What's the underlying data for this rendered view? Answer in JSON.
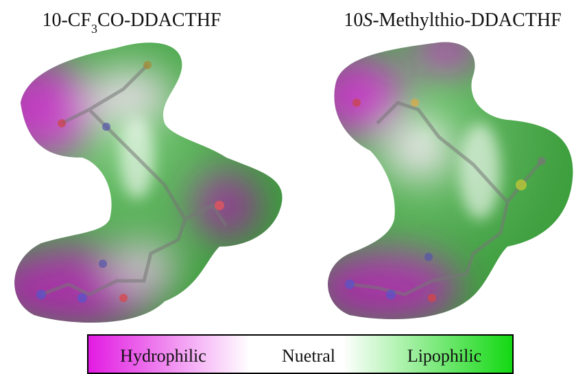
{
  "panels": [
    {
      "title_parts": [
        "10-CF",
        "3",
        "CO-DDACTHF"
      ]
    },
    {
      "title_parts": [
        "10",
        "S",
        "-Methylthio-DDACTHF"
      ]
    }
  ],
  "legend": {
    "labels": [
      "Hydrophilic",
      "Nuetral",
      "Lipophilic"
    ]
  }
}
